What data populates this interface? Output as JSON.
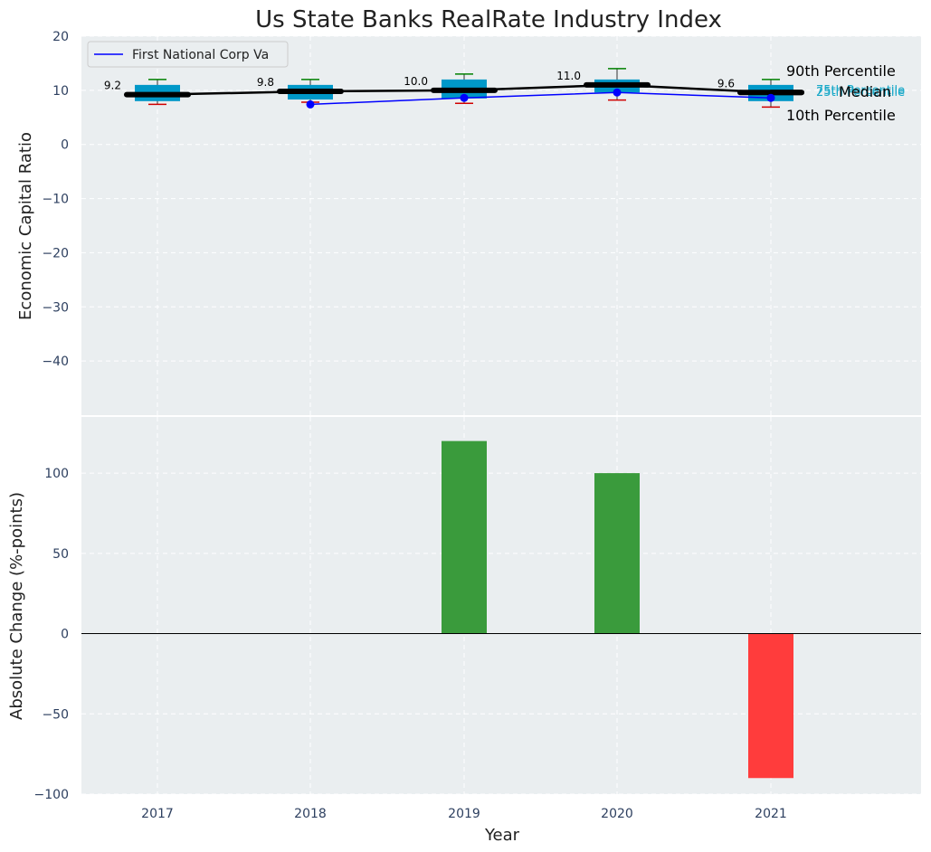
{
  "chart_data": [
    {
      "type": "box",
      "title": "Us State Banks RealRate Industry Index",
      "ylabel": "Economic Capital Ratio",
      "ylim": [
        -50,
        20
      ],
      "yticks": [
        20,
        10,
        0,
        -10,
        -20,
        -30,
        -40
      ],
      "grid": true,
      "categories": [
        "2017",
        "2018",
        "2019",
        "2020",
        "2021"
      ],
      "p10": [
        7.4,
        7.8,
        7.6,
        8.2,
        6.9
      ],
      "p25": [
        8.0,
        8.3,
        8.5,
        9.6,
        8.0
      ],
      "median": [
        9.2,
        9.8,
        10.0,
        11.0,
        9.6
      ],
      "p75": [
        11.0,
        11.0,
        12.0,
        12.0,
        11.0
      ],
      "p90": [
        12.0,
        12.0,
        13.0,
        14.0,
        12.0
      ],
      "median_labels": [
        "9.2",
        "9.8",
        "10.0",
        "11.0",
        "9.6"
      ],
      "company": {
        "name": "First National Corp Va",
        "values": [
          null,
          7.4,
          8.6,
          9.6,
          8.6
        ]
      },
      "legend": {
        "label": "First National Corp Va",
        "position": "upper-left"
      },
      "annotations": {
        "p90": "90th Percentile",
        "p75": "75th Percentile",
        "median": "Median",
        "p25": "25th Percentile",
        "p10": "10th Percentile"
      },
      "colors": {
        "box": "#0098c8",
        "median": "#000000",
        "p90_whisker": "#008000",
        "p10_whisker": "#d00000",
        "company": "#0000ff",
        "quartile_text": "#17a8c8"
      }
    },
    {
      "type": "bar",
      "xlabel": "Year",
      "ylabel": "Absolute Change (%-points)",
      "ylim": [
        -100,
        135
      ],
      "yticks": [
        100,
        50,
        0,
        -50,
        -100
      ],
      "grid": true,
      "categories": [
        "2017",
        "2018",
        "2019",
        "2020",
        "2021"
      ],
      "values": [
        0,
        0,
        120,
        100,
        -90
      ],
      "colors": {
        "positive": "#3a9b3c",
        "negative": "#ff3c3c"
      }
    }
  ]
}
